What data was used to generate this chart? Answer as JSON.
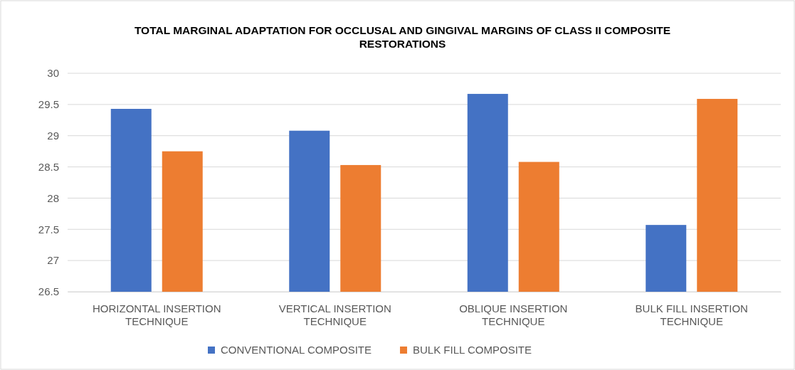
{
  "chart_data": {
    "type": "bar",
    "title": "TOTAL MARGINAL ADAPTATION FOR OCCLUSAL AND GINGIVAL MARGINS OF CLASS II COMPOSITE RESTORATIONS",
    "categories": [
      "HORIZONTAL INSERTION TECHNIQUE",
      "VERTICAL INSERTION TECHNIQUE",
      "OBLIQUE INSERTION TECHNIQUE",
      "BULK FILL INSERTION TECHNIQUE"
    ],
    "series": [
      {
        "name": "CONVENTIONAL COMPOSITE",
        "color": "#4472c4",
        "values": [
          29.43,
          29.08,
          29.67,
          27.57
        ]
      },
      {
        "name": "BULK FILL COMPOSITE",
        "color": "#ed7d31",
        "values": [
          28.75,
          28.53,
          28.58,
          29.59
        ]
      }
    ],
    "ylim": [
      26.5,
      30
    ],
    "yticks": [
      26.5,
      27,
      27.5,
      28,
      28.5,
      29,
      29.5,
      30
    ],
    "grid": "y",
    "legend": "bottom"
  }
}
